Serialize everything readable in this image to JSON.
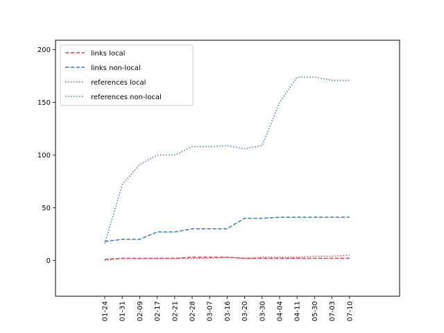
{
  "chart_data": {
    "type": "line",
    "title": "",
    "xlabel": "",
    "ylabel": "",
    "categories": [
      "01-24",
      "01-31",
      "02-09",
      "02-17",
      "02-21",
      "02-28",
      "03-07",
      "03-16",
      "03-20",
      "03-30",
      "04-04",
      "04-11",
      "05-30",
      "07-03",
      "07-10"
    ],
    "ylim": [
      -34,
      209
    ],
    "yticks": [
      0,
      50,
      100,
      150,
      200
    ],
    "grid": false,
    "legend_position": "top-left",
    "series": [
      {
        "name": "links local",
        "style": "dashed",
        "color": "#d0474a",
        "values": [
          1,
          2,
          2,
          2,
          2,
          3,
          3,
          3,
          2,
          2,
          2,
          2,
          2,
          2,
          2
        ]
      },
      {
        "name": "links non-local",
        "style": "dashed",
        "color": "#3a79b4",
        "values": [
          18,
          20,
          20,
          27,
          27,
          30,
          30,
          30,
          40,
          40,
          41,
          41,
          41,
          41,
          41
        ]
      },
      {
        "name": "references local",
        "style": "dotted",
        "color": "#d0474a",
        "values": [
          0,
          2,
          2,
          2,
          2,
          2,
          2,
          3,
          2,
          3,
          3,
          3,
          4,
          4,
          5
        ]
      },
      {
        "name": "references non-local",
        "style": "dotted",
        "color": "#3a79b4",
        "values": [
          16,
          72,
          91,
          100,
          100,
          108,
          108,
          109,
          106,
          109,
          150,
          174,
          174,
          171,
          171
        ]
      }
    ]
  }
}
